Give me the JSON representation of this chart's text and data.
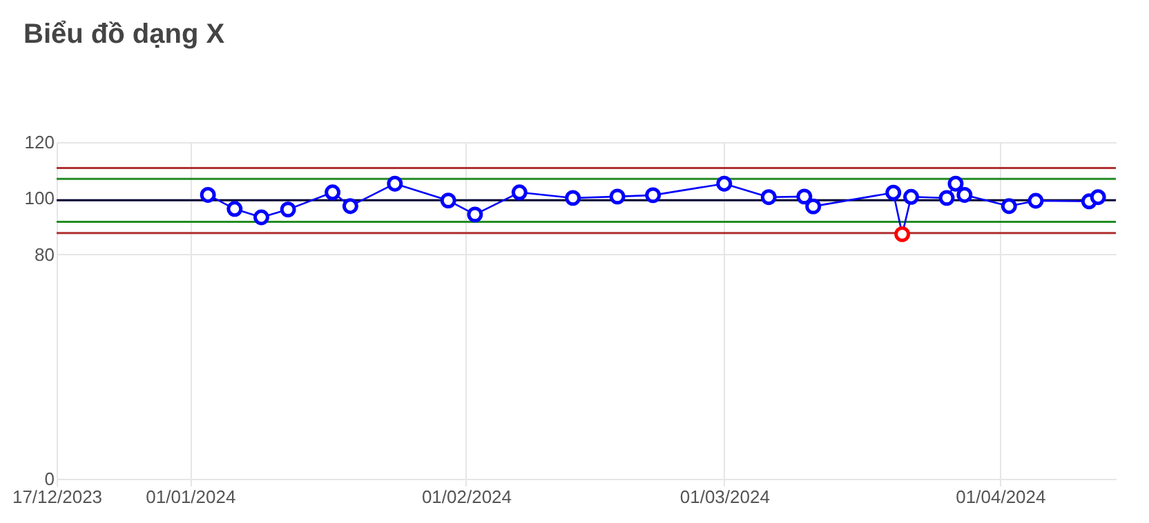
{
  "chart_data": {
    "type": "line",
    "title": "Biểu đồ dạng X",
    "x": [
      "2024-01-03",
      "2024-01-06",
      "2024-01-09",
      "2024-01-12",
      "2024-01-17",
      "2024-01-19",
      "2024-01-24",
      "2024-01-30",
      "2024-02-02",
      "2024-02-07",
      "2024-02-13",
      "2024-02-18",
      "2024-02-22",
      "2024-03-01",
      "2024-03-06",
      "2024-03-10",
      "2024-03-11",
      "2024-03-20",
      "2024-03-21",
      "2024-03-22",
      "2024-03-26",
      "2024-03-27",
      "2024-03-28",
      "2024-04-02",
      "2024-04-05",
      "2024-04-11",
      "2024-04-12"
    ],
    "series": [
      {
        "color": "#0000ff",
        "colors": [
          "#0000ff",
          "#0000ff",
          "#0000ff",
          "#0000ff",
          "#0000ff",
          "#0000ff",
          "#0000ff",
          "#0000ff",
          "#0000ff",
          "#0000ff",
          "#0000ff",
          "#0000ff",
          "#0000ff",
          "#0000ff",
          "#0000ff",
          "#0000ff",
          "#0000ff",
          "#0000ff",
          "#ff0000",
          "#0000ff",
          "#0000ff",
          "#0000ff",
          "#0000ff",
          "#0000ff",
          "#0000ff",
          "#0000ff",
          "#0000ff"
        ],
        "values": [
          101.2,
          96.2,
          93.2,
          96.0,
          102.1,
          97.2,
          105.2,
          99.2,
          94.2,
          102.1,
          100.1,
          100.6,
          101.1,
          105.2,
          100.4,
          100.6,
          97.1,
          102.0,
          87.2,
          100.5,
          100.1,
          105.2,
          101.2,
          97.2,
          99.1,
          98.9,
          100.4
        ]
      }
    ],
    "xlim": [
      "2023-12-17",
      "2024-04-14"
    ],
    "xticks": [
      {
        "value": "2023-12-17",
        "label": "17/12/2023"
      },
      {
        "value": "2024-01-01",
        "label": "01/01/2024"
      },
      {
        "value": "2024-02-01",
        "label": "01/02/2024"
      },
      {
        "value": "2024-03-01",
        "label": "01/03/2024"
      },
      {
        "value": "2024-04-01",
        "label": "01/04/2024"
      }
    ],
    "ylim": [
      0,
      120
    ],
    "yticks": [
      0,
      80,
      100,
      120
    ],
    "grid": true,
    "marker": "circle",
    "line_style": "solid",
    "ref_lines": [
      {
        "axis": "y",
        "value": 110.8,
        "color": "#b03030"
      },
      {
        "axis": "y",
        "value": 106.9,
        "color": "#228b22"
      },
      {
        "axis": "y",
        "value": 99.3,
        "color": "#000033"
      },
      {
        "axis": "y",
        "value": 91.6,
        "color": "#228b22"
      },
      {
        "axis": "y",
        "value": 87.6,
        "color": "#b03030"
      }
    ]
  }
}
